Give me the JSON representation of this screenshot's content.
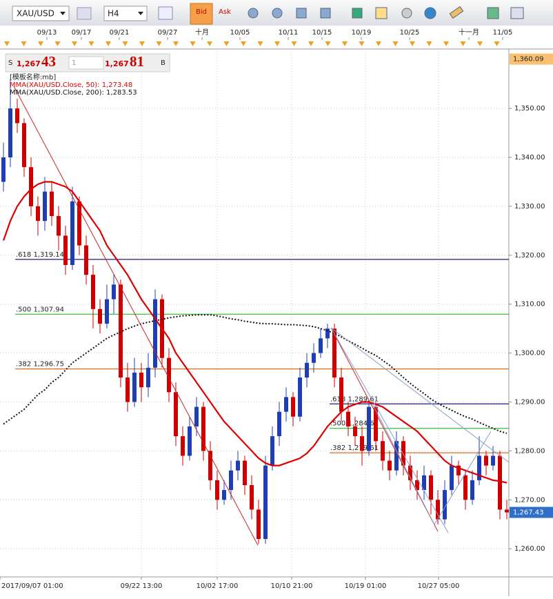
{
  "toolbar": {
    "symbol": "XAU/USD",
    "timeframe": "H4",
    "bid": "Bid",
    "ask": "Ask"
  },
  "quote": {
    "sell_label": "S",
    "sell_big": "1,267",
    "sell_small": "43",
    "lot": "1",
    "buy_big": "1,267",
    "buy_small": "81",
    "buy_label": "B"
  },
  "template": "[模板名称:mb]",
  "chart_data": {
    "type": "candlestick",
    "xlim": [
      -0.5,
      73.3
    ],
    "ylim": [
      1254.24,
      1362.15
    ],
    "grid": true,
    "up_color": "#1f3fb0",
    "down_color": "#cc0000",
    "yticks": [
      {
        "value": 1260,
        "label": "1,260.00"
      },
      {
        "value": 1270,
        "label": "1,270.00"
      },
      {
        "value": 1280,
        "label": "1,280.00"
      },
      {
        "value": 1290,
        "label": "1,290.00"
      },
      {
        "value": 1300,
        "label": "1,300.00"
      },
      {
        "value": 1310,
        "label": "1,310.00"
      },
      {
        "value": 1320,
        "label": "1,320.00"
      },
      {
        "value": 1330,
        "label": "1,330.00"
      },
      {
        "value": 1340,
        "label": "1,340.00"
      },
      {
        "value": 1350,
        "label": "1,350.00"
      }
    ],
    "top_ticks": [
      {
        "value": 6.3,
        "label": "09/13"
      },
      {
        "value": 11.3,
        "label": "09/17"
      },
      {
        "value": 16.8,
        "label": "09/21"
      },
      {
        "value": 23.8,
        "label": "09/27"
      },
      {
        "value": 28.8,
        "label": "十月"
      },
      {
        "value": 34.3,
        "label": "10/05"
      },
      {
        "value": 41.3,
        "label": "10/11"
      },
      {
        "value": 46.2,
        "label": "10/15"
      },
      {
        "value": 51.9,
        "label": "10/19"
      },
      {
        "value": 58.9,
        "label": "10/25"
      },
      {
        "value": 67.5,
        "label": "十一月"
      },
      {
        "value": 72.4,
        "label": "11/05"
      }
    ],
    "xticks": [
      {
        "value": -0.5,
        "label": "2017/09/07 01:00"
      },
      {
        "value": 20,
        "label": "09/22 13:00"
      },
      {
        "value": 31,
        "label": "10/02 17:00"
      },
      {
        "value": 41.8,
        "label": "10/10 21:00"
      },
      {
        "value": 52.5,
        "label": "10/19 01:00"
      },
      {
        "value": 63.1,
        "label": "10/27 05:00"
      }
    ],
    "ohlc": [
      [
        1335,
        1343,
        1333,
        1340
      ],
      [
        1340,
        1356,
        1338,
        1350
      ],
      [
        1350,
        1352,
        1345,
        1347
      ],
      [
        1347,
        1348,
        1336,
        1338
      ],
      [
        1338,
        1340,
        1328,
        1330
      ],
      [
        1330,
        1332,
        1324,
        1327
      ],
      [
        1327,
        1336,
        1325,
        1333
      ],
      [
        1333,
        1335,
        1326,
        1328
      ],
      [
        1328,
        1330,
        1321,
        1324
      ],
      [
        1324,
        1326,
        1316,
        1318
      ],
      [
        1318,
        1334,
        1317,
        1331
      ],
      [
        1331,
        1332,
        1320,
        1322
      ],
      [
        1322,
        1324,
        1314,
        1316
      ],
      [
        1316,
        1318,
        1305,
        1309
      ],
      [
        1309,
        1311,
        1304,
        1306
      ],
      [
        1306,
        1314,
        1305,
        1311
      ],
      [
        1311,
        1316,
        1308,
        1314
      ],
      [
        1314,
        1315,
        1293,
        1295
      ],
      [
        1295,
        1298,
        1288,
        1290
      ],
      [
        1290,
        1299,
        1289,
        1296
      ],
      [
        1296,
        1298,
        1290,
        1293
      ],
      [
        1293,
        1300,
        1291,
        1297
      ],
      [
        1297,
        1313,
        1295,
        1311
      ],
      [
        1311,
        1312,
        1297,
        1299
      ],
      [
        1299,
        1301,
        1290,
        1292
      ],
      [
        1292,
        1294,
        1281,
        1283
      ],
      [
        1283,
        1285,
        1277,
        1279
      ],
      [
        1279,
        1287,
        1278,
        1285
      ],
      [
        1285,
        1291,
        1283,
        1289
      ],
      [
        1289,
        1290,
        1278,
        1280
      ],
      [
        1280,
        1282,
        1272,
        1274
      ],
      [
        1274,
        1276,
        1268,
        1270
      ],
      [
        1270,
        1274,
        1269,
        1272
      ],
      [
        1272,
        1278,
        1270,
        1276
      ],
      [
        1276,
        1280,
        1274,
        1278
      ],
      [
        1278,
        1279,
        1271,
        1273
      ],
      [
        1273,
        1275,
        1266,
        1268
      ],
      [
        1268,
        1270,
        1261,
        1262
      ],
      [
        1262,
        1279,
        1261,
        1277
      ],
      [
        1277,
        1285,
        1276,
        1283
      ],
      [
        1283,
        1290,
        1281,
        1288
      ],
      [
        1288,
        1293,
        1286,
        1291
      ],
      [
        1291,
        1292,
        1285,
        1287
      ],
      [
        1287,
        1297,
        1286,
        1295
      ],
      [
        1295,
        1300,
        1293,
        1298
      ],
      [
        1298,
        1302,
        1296,
        1300
      ],
      [
        1300,
        1305,
        1299,
        1303
      ],
      [
        1303,
        1306,
        1301,
        1305
      ],
      [
        1305,
        1306,
        1293,
        1295
      ],
      [
        1295,
        1297,
        1286,
        1288
      ],
      [
        1288,
        1290,
        1283,
        1285
      ],
      [
        1285,
        1287,
        1281,
        1283
      ],
      [
        1283,
        1285,
        1277,
        1280
      ],
      [
        1280,
        1290,
        1279,
        1289
      ],
      [
        1289,
        1290,
        1280,
        1282
      ],
      [
        1282,
        1284,
        1276,
        1278
      ],
      [
        1278,
        1280,
        1274,
        1276
      ],
      [
        1276,
        1284,
        1275,
        1282
      ],
      [
        1282,
        1283,
        1275,
        1277
      ],
      [
        1277,
        1279,
        1272,
        1274
      ],
      [
        1274,
        1276,
        1270,
        1272
      ],
      [
        1272,
        1277,
        1270,
        1275
      ],
      [
        1275,
        1276,
        1267,
        1270
      ],
      [
        1270,
        1272,
        1265,
        1266
      ],
      [
        1266,
        1274,
        1265,
        1272
      ],
      [
        1272,
        1279,
        1271,
        1277
      ],
      [
        1277,
        1278,
        1273,
        1275
      ],
      [
        1275,
        1276,
        1268,
        1270
      ],
      [
        1270,
        1276,
        1269,
        1274
      ],
      [
        1274,
        1283,
        1273,
        1279
      ],
      [
        1279,
        1280,
        1275,
        1277
      ],
      [
        1277,
        1281,
        1276,
        1279
      ],
      [
        1279,
        1280,
        1266,
        1268
      ],
      [
        1268,
        1270,
        1266,
        1267.43
      ]
    ],
    "series": [
      {
        "name": "MMA(XAU/USD.Close, 50): 1,273.48",
        "color": "#dd0000",
        "dashed": false,
        "values": [
          1323,
          1327,
          1330,
          1332,
          1333.5,
          1334.5,
          1335,
          1335,
          1334.5,
          1334,
          1333,
          1331,
          1329,
          1327,
          1325,
          1322,
          1320,
          1318,
          1316,
          1313.5,
          1311,
          1309,
          1307,
          1305,
          1303,
          1300,
          1298,
          1296,
          1294,
          1292,
          1290,
          1288,
          1286,
          1284.5,
          1283,
          1281.5,
          1280,
          1278.5,
          1277.5,
          1277,
          1277,
          1277.5,
          1278,
          1278.5,
          1279.5,
          1281,
          1283,
          1285,
          1286.5,
          1288,
          1289,
          1289.5,
          1290,
          1290,
          1289.5,
          1289,
          1288,
          1287,
          1286,
          1285,
          1284,
          1282.5,
          1281,
          1279.5,
          1278,
          1277,
          1276.5,
          1276,
          1275.5,
          1275,
          1274.5,
          1274,
          1273.8,
          1273.5
        ]
      },
      {
        "name": "MMA(XAU/USD.Close, 200): 1,283.53",
        "color": "#111111",
        "dashed": true,
        "values": [
          1285.5,
          1286.5,
          1287.5,
          1288.5,
          1290,
          1291.5,
          1292.5,
          1294,
          1295,
          1296.5,
          1298,
          1299,
          1300,
          1301,
          1302,
          1303,
          1303.7,
          1304.3,
          1305,
          1305.5,
          1306,
          1306.3,
          1306.6,
          1306.9,
          1307.2,
          1307.4,
          1307.6,
          1307.7,
          1307.8,
          1307.8,
          1307.8,
          1307.6,
          1307.3,
          1307,
          1306.8,
          1306.5,
          1306.3,
          1306.1,
          1306,
          1306,
          1305.9,
          1305.8,
          1305.8,
          1305.7,
          1305.6,
          1305.4,
          1305,
          1304.6,
          1304,
          1303.3,
          1302.5,
          1301.8,
          1301,
          1300.2,
          1299.5,
          1298.5,
          1297.5,
          1296.3,
          1295,
          1293.8,
          1292.7,
          1291.7,
          1290.6,
          1289.7,
          1289,
          1288.3,
          1287.6,
          1287,
          1286.5,
          1285.8,
          1285.2,
          1284.6,
          1284,
          1283.6
        ]
      }
    ],
    "fib": [
      {
        "label": ".618  1,319.14",
        "value": 1319.14,
        "color": "#1a1a8c"
      },
      {
        "label": ".500  1,307.94",
        "value": 1307.94,
        "color": "#22bb22"
      },
      {
        "label": ".382  1,296.75",
        "value": 1296.75,
        "color": "#e06a1a"
      },
      {
        "label": ".618  1,289.61",
        "value": 1289.61,
        "color": "#1a1a8c"
      },
      {
        "label": ".500  1,284.61",
        "value": 1284.61,
        "color": "#22bb22"
      },
      {
        "label": ".382  1,279.61",
        "value": 1279.61,
        "color": "#e06a1a"
      }
    ],
    "high_marker": {
      "value": 1360.09,
      "label": "1,360.09"
    },
    "last_price": {
      "value": 1267.43,
      "label": "1,267.43"
    }
  }
}
